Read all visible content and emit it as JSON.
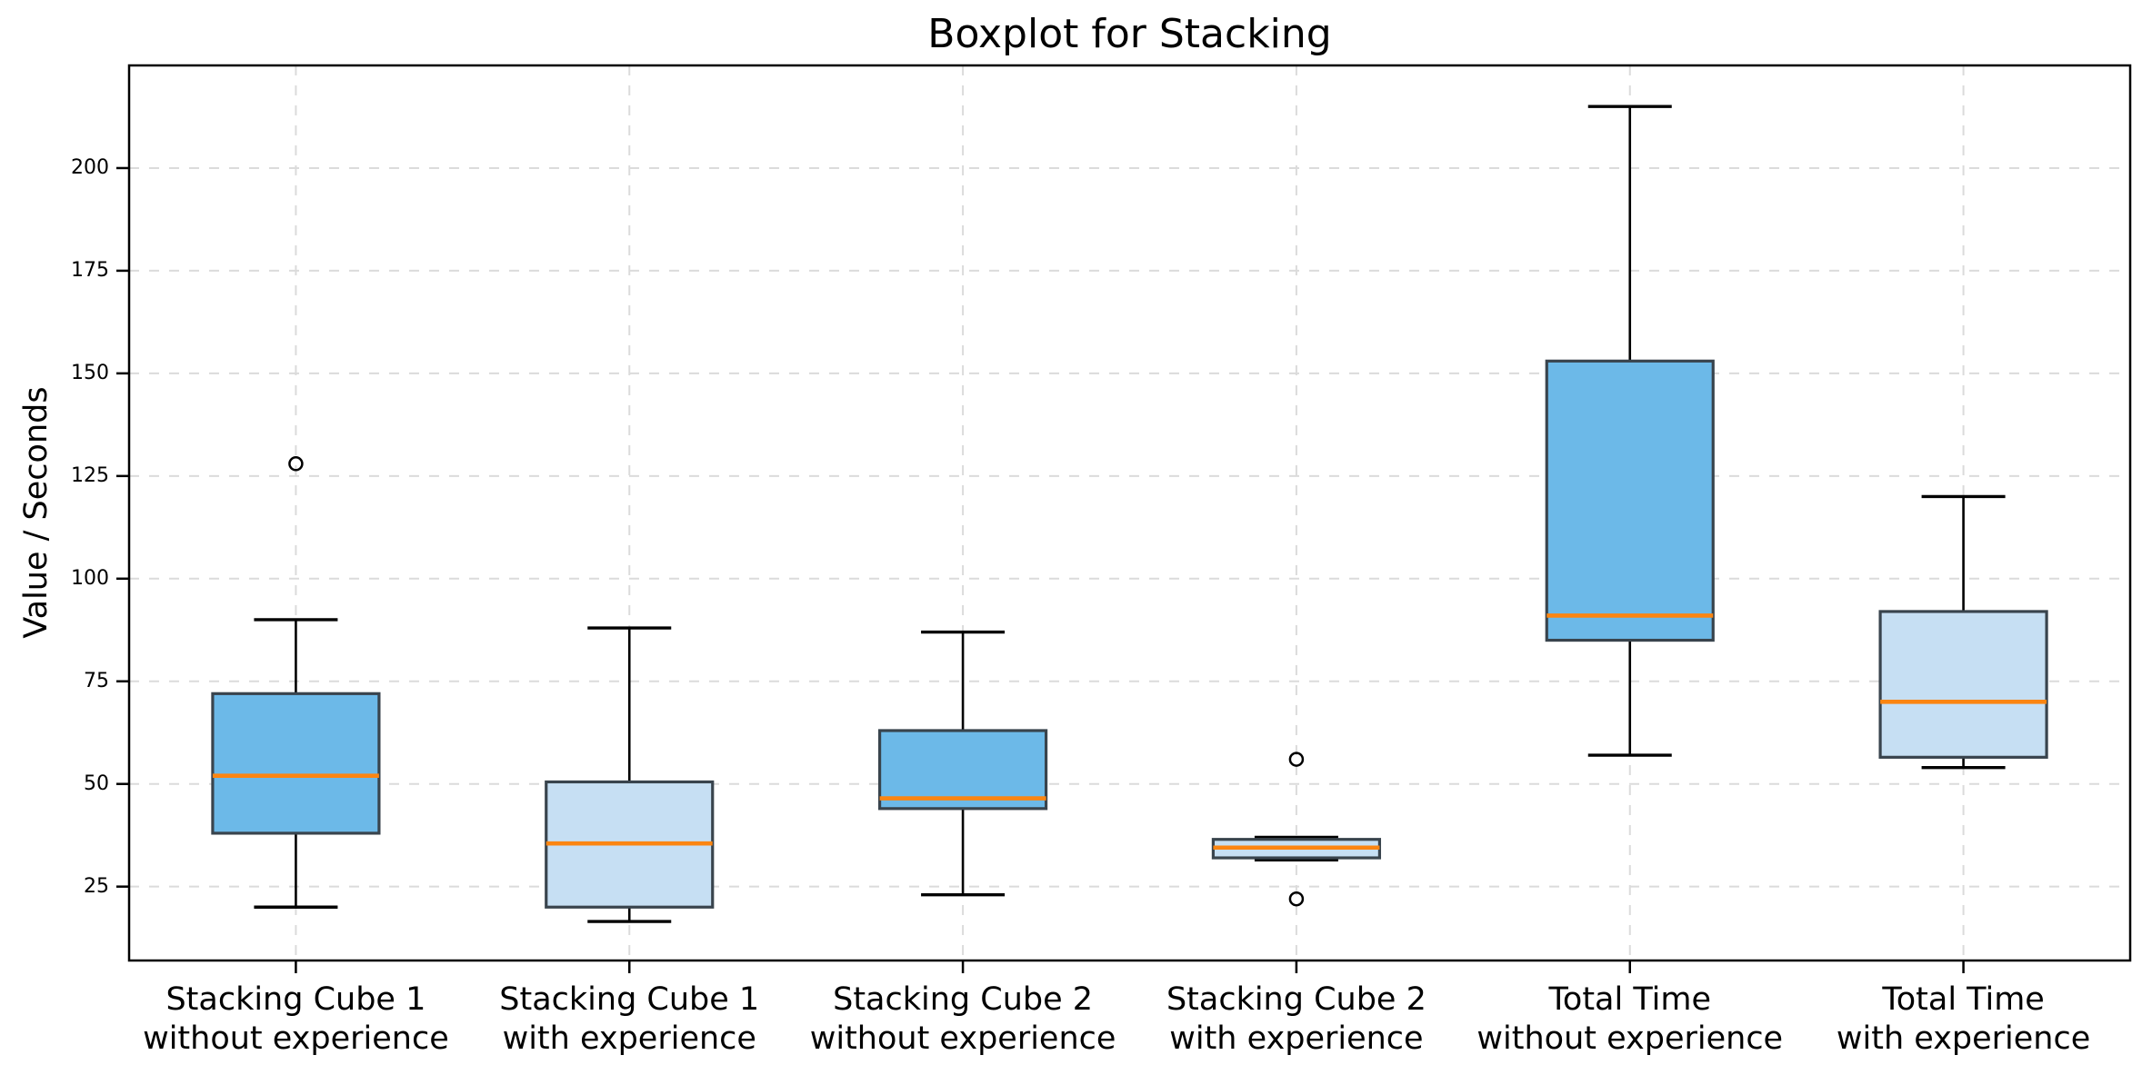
{
  "title": "Boxplot for Stacking",
  "ylabel": "Value / Seconds",
  "colors": {
    "background": "#ffffff",
    "box_dark": "#6cb9e8",
    "box_light": "#c6dff3",
    "box_edge": "#39444d",
    "median": "#fb8511",
    "whisker": "#000000",
    "outlier_stroke": "#000000",
    "grid": "#dbdbdb",
    "spine": "#000000",
    "text": "#000000"
  },
  "chart_data": {
    "type": "boxplot",
    "title": "Boxplot for Stacking",
    "xlabel": "",
    "ylabel": "Value / Seconds",
    "ylim": [
      7,
      225
    ],
    "yticks": [
      25,
      50,
      75,
      100,
      125,
      150,
      175,
      200
    ],
    "grid": {
      "horizontal": true,
      "vertical": true,
      "style": "dashed"
    },
    "legend": "none",
    "categories": [
      [
        "Stacking Cube 1",
        "without experience"
      ],
      [
        "Stacking Cube 1",
        "with experience"
      ],
      [
        "Stacking Cube 2",
        "without experience"
      ],
      [
        "Stacking Cube 2",
        "with experience"
      ],
      [
        "Total Time",
        "without experience"
      ],
      [
        "Total Time",
        "with experience"
      ]
    ],
    "series": [
      {
        "name": "Stacking Cube 1 without experience",
        "fill": "dark",
        "whislo": 20,
        "q1": 38,
        "med": 52,
        "q3": 72,
        "whishi": 90,
        "fliers": [
          128
        ]
      },
      {
        "name": "Stacking Cube 1 with experience",
        "fill": "light",
        "whislo": 16.5,
        "q1": 20,
        "med": 35.5,
        "q3": 50.5,
        "whishi": 88,
        "fliers": []
      },
      {
        "name": "Stacking Cube 2 without experience",
        "fill": "dark",
        "whislo": 23,
        "q1": 44,
        "med": 46.5,
        "q3": 63,
        "whishi": 87,
        "fliers": []
      },
      {
        "name": "Stacking Cube 2 with experience",
        "fill": "light",
        "whislo": 31.5,
        "q1": 32,
        "med": 34.5,
        "q3": 36.5,
        "whishi": 37,
        "fliers": [
          56,
          22
        ]
      },
      {
        "name": "Total Time without experience",
        "fill": "dark",
        "whislo": 57,
        "q1": 85,
        "med": 91,
        "q3": 153,
        "whishi": 215,
        "fliers": []
      },
      {
        "name": "Total Time with experience",
        "fill": "light",
        "whislo": 54,
        "q1": 56.5,
        "med": 70,
        "q3": 92,
        "whishi": 120,
        "fliers": []
      }
    ]
  }
}
